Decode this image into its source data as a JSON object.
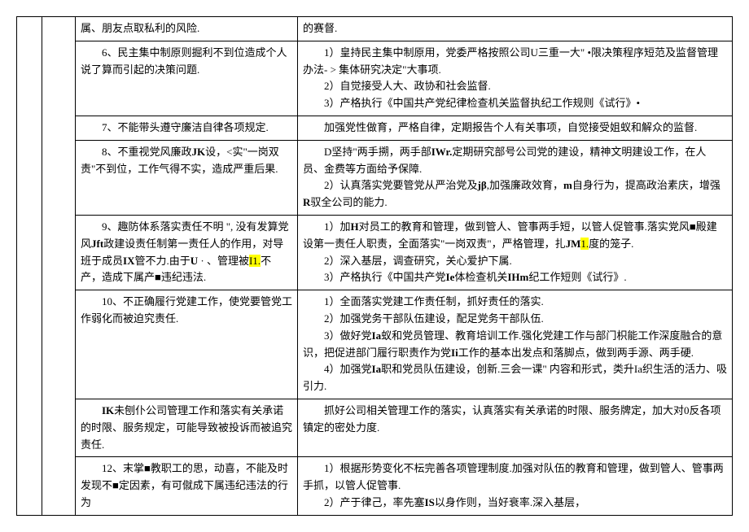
{
  "rows": [
    {
      "left": [
        {
          "t": "属、朋友点取私利的风险."
        }
      ],
      "right": [
        {
          "t": "的赛督."
        }
      ]
    },
    {
      "left": [
        {
          "t": "6、民主集中制原则掘利不到位造成个人说了算而引起的决策问题.",
          "lead_indent": true
        }
      ],
      "right": [
        {
          "t": "1）皇持民主集中制原用，党委严格按照公司U三重一大\" •限决策程序短范及监督管理办法- > 集体研究决定\"大事项.",
          "lead_indent": true
        },
        {
          "t": "2）自觉接受人大、政协和社会监督.",
          "lead_indent": true
        },
        {
          "t": "3）产格执行《中国共产党纪律检查机关监督执纪工作规则《试行》•",
          "lead_indent": true,
          "bold_last": true
        }
      ]
    },
    {
      "left": [
        {
          "t": "7、不能带头遵守廉洁自律各项规定.",
          "lead_indent": true
        }
      ],
      "right": [
        {
          "t": "加强党性做育，严格自律，定期报告个人有关事项，自觉接受姐蚁和解众的监督.",
          "lead_indent": true
        }
      ]
    },
    {
      "left": [
        {
          "t": "8、不重视党风廉政JK设，<实\"一岗双责\"不到位，工作气得不实，造成严重后果.",
          "lead_indent": true,
          "bold_frag": "JK"
        }
      ],
      "right": [
        {
          "t": "D坚持\"两手搠，两手部IWr.定期研究部号公司党的建设，精神文明建设工作，在人员、金费等方面给予保障.",
          "lead_indent": true,
          "bold_frag": "IWr."
        },
        {
          "t": "2）认真落实党要管党从严治党及jβ,加强廉政效育，m自身行为，提高政治素庆，增强R驭全公司的能力.",
          "lead_indent": true,
          "bold_frags": [
            "jβ",
            "m",
            "R"
          ]
        }
      ]
    },
    {
      "left": [
        {
          "t": "9、趣防体系落实责任不明 \", 没有发算党风Jft政建设责任制第一责任人的作用，对导班于成员IX管不力.由于U · 、管理被|I1.|不产，造成下属产■违纪违法.",
          "lead_indent": true,
          "bold_frags": [
            "Jft",
            "IX",
            "U"
          ],
          "hl": "I1."
        }
      ],
      "right": [
        {
          "t": "1）加H对员工的教育和管理，做到管人、管事两手短，以管人促管事.落实党风■殿建设第一责任人职责，全面落实\"一岗双责\"，严格管理，扎JM|1.|度的笼子.",
          "lead_indent": true,
          "bold_frags": [
            "H",
            "JM"
          ],
          "hl": "1."
        },
        {
          "t": "2）深入基层，调查研究，关心爱护下属.",
          "lead_indent": true
        },
        {
          "t": "3）产格执行《中国共产党Ie体检查机关IHm纪工作短则《试行》.",
          "lead_indent": true,
          "bold_frags": [
            "Ie",
            "IHm"
          ]
        }
      ]
    },
    {
      "left": [
        {
          "t": "10、不正确履行党建工作，使党要管党工作弱化而被迫究责任.",
          "lead_indent": true
        }
      ],
      "right": [
        {
          "t": "1）全面落实党建工作责任制，抓好责任的落实.",
          "lead_indent": true
        },
        {
          "t": "2）加强党务干部队伍建设，配足党务干部队伍.",
          "lead_indent": true
        },
        {
          "t": "3）做好党Ia蚁和党员管理、教育培训工作.强化党建工作与部门枳能工作深度融合的意识，把促进部门履行职责作为党Ii工作的基本出发点和落脚点，做到两手源、两手硬.",
          "lead_indent": true,
          "bold_frags": [
            "Ia",
            "Ii"
          ]
        },
        {
          "t": "4）加强党Ia职和党员队伍建设，创新.三会一课\" 内容和形式，类升Ia织生活的活力、吸引力.",
          "lead_indent": true,
          "bold_frags": [
            "Ia",
            "Ia"
          ]
        }
      ]
    },
    {
      "left": [
        {
          "t": "IK未刨仆公司管理工作和落实有关承诺的时限、服务规定，可能导致被投诉而被追究责任.",
          "lead_indent": true,
          "bold_frag": "IK"
        }
      ],
      "right": [
        {
          "t": "抓好公司相关管理工作的落实，认真落实有关承诺的时限、服务牌定，加大对0反各项镇定的密处力度.",
          "lead_indent": true
        }
      ]
    },
    {
      "left": [
        {
          "t": "12、末掌■教职工的思，动喜，不能及时发现不■定因素，有可僦成下属违纪违法的行为",
          "lead_indent": true
        }
      ],
      "right": [
        {
          "t": "1）根据形势变化不枟完善各项管理制度.加强对队伍的教育和管理，做到管人、管事两手抓，以管人促管事.",
          "lead_indent": true
        },
        {
          "t": "2）产于律己，率先塞IS以身作则，当好衰率.深入基层，",
          "lead_indent": true,
          "bold_frag": "IS"
        }
      ]
    }
  ]
}
